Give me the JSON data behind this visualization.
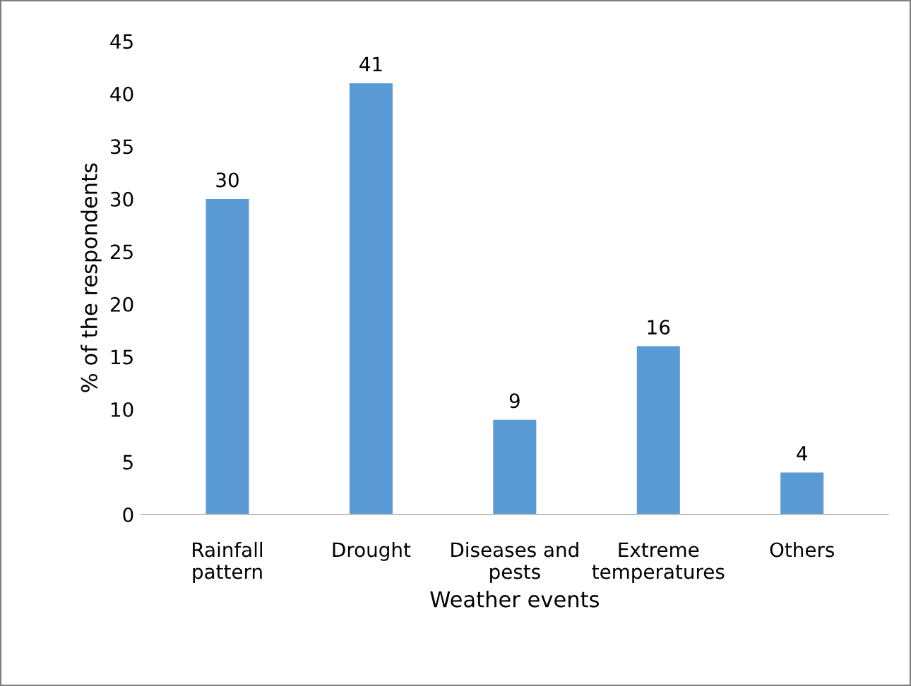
{
  "chart_data": {
    "type": "bar",
    "xlabel": "Weather events",
    "ylabel": "% of the respondents",
    "categories": [
      "Rainfall\npattern",
      "Drought",
      "Diseases and\npests",
      "Extreme\ntemperatures",
      "Others"
    ],
    "values": [
      30,
      41,
      9,
      16,
      4
    ],
    "color": "#5b9bd5",
    "ylim": [
      0,
      45
    ],
    "yticks": [
      0,
      5,
      10,
      15,
      20,
      25,
      30,
      35,
      40,
      45
    ],
    "grid": false,
    "data_labels": true
  }
}
